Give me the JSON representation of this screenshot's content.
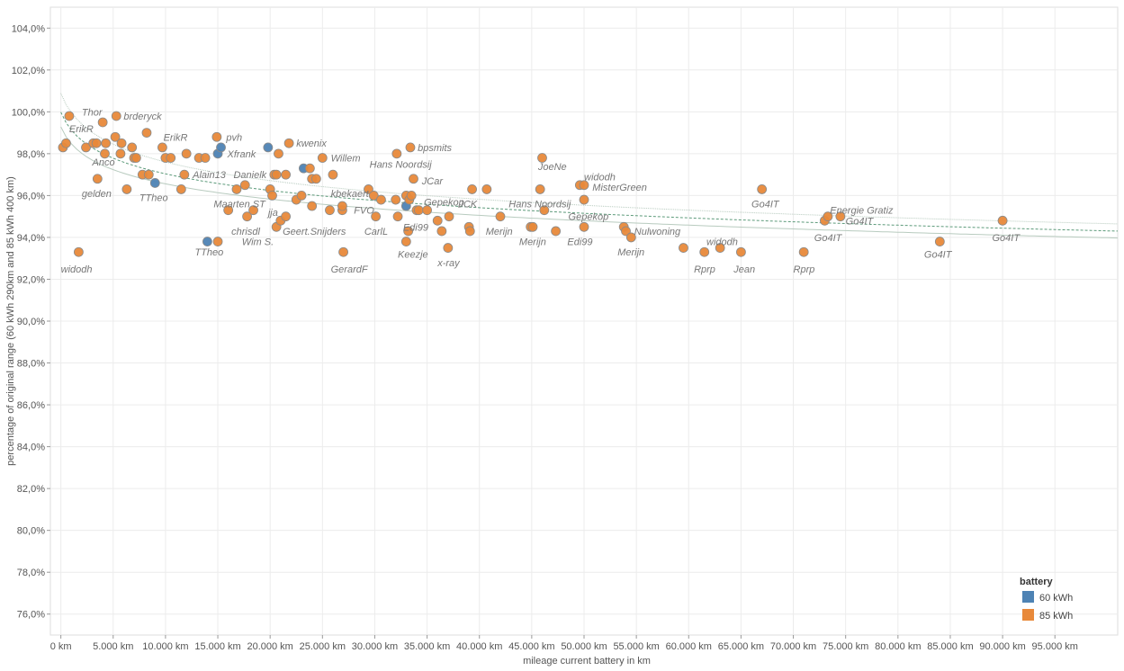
{
  "chart_data": {
    "type": "scatter",
    "xlabel": "mileage current battery in km",
    "ylabel": "percentage of original range (60 kWh 290km and 85 kWh 400 km)",
    "xlim": [
      -1000,
      101000
    ],
    "ylim": [
      75,
      105
    ],
    "x_ticks": [
      0,
      5000,
      10000,
      15000,
      20000,
      25000,
      30000,
      35000,
      40000,
      45000,
      50000,
      55000,
      60000,
      65000,
      70000,
      75000,
      80000,
      85000,
      90000,
      95000
    ],
    "x_tick_labels": [
      "0 km",
      "5.000 km",
      "10.000 km",
      "15.000 km",
      "20.000 km",
      "25.000 km",
      "30.000 km",
      "35.000 km",
      "40.000 km",
      "45.000 km",
      "50.000 km",
      "55.000 km",
      "60.000 km",
      "65.000 km",
      "70.000 km",
      "75.000 km",
      "80.000 km",
      "85.000 km",
      "90.000 km",
      "95.000 km"
    ],
    "y_ticks": [
      76,
      78,
      80,
      82,
      84,
      86,
      88,
      90,
      92,
      94,
      96,
      98,
      100,
      102,
      104
    ],
    "y_tick_labels": [
      "76,0%",
      "78,0%",
      "80,0%",
      "82,0%",
      "84,0%",
      "86,0%",
      "88,0%",
      "90,0%",
      "92,0%",
      "94,0%",
      "96,0%",
      "98,0%",
      "100,0%",
      "102,0%",
      "104,0%"
    ],
    "grid": true,
    "legend": {
      "title": "battery",
      "placement": "bottom-right",
      "entries": [
        {
          "name": "60 kWh",
          "color": "#4e83b4"
        },
        {
          "name": "85 kWh",
          "color": "#e8893a"
        }
      ]
    },
    "trend_lines": true,
    "series": [
      {
        "name": "60 kWh",
        "color": "#4e83b4",
        "points": [
          {
            "x": 9000,
            "y": 96.6
          },
          {
            "x": 14000,
            "y": 93.8
          },
          {
            "x": 15000,
            "y": 98.0
          },
          {
            "x": 15300,
            "y": 98.3
          },
          {
            "x": 19800,
            "y": 98.3
          },
          {
            "x": 23200,
            "y": 97.3
          },
          {
            "x": 33000,
            "y": 95.5
          }
        ]
      },
      {
        "name": "85 kWh",
        "color": "#e8893a",
        "points": [
          {
            "x": 200,
            "y": 98.3
          },
          {
            "x": 500,
            "y": 98.5
          },
          {
            "x": 800,
            "y": 99.8
          },
          {
            "x": 1700,
            "y": 93.3
          },
          {
            "x": 2400,
            "y": 98.3
          },
          {
            "x": 3100,
            "y": 98.5
          },
          {
            "x": 3400,
            "y": 98.5
          },
          {
            "x": 3500,
            "y": 96.8
          },
          {
            "x": 4000,
            "y": 99.5
          },
          {
            "x": 4200,
            "y": 98.0
          },
          {
            "x": 4300,
            "y": 98.5
          },
          {
            "x": 5200,
            "y": 98.8
          },
          {
            "x": 5300,
            "y": 99.8
          },
          {
            "x": 5700,
            "y": 98.0
          },
          {
            "x": 5800,
            "y": 98.5
          },
          {
            "x": 6300,
            "y": 96.3
          },
          {
            "x": 6800,
            "y": 98.3
          },
          {
            "x": 7000,
            "y": 97.8
          },
          {
            "x": 7200,
            "y": 97.8
          },
          {
            "x": 7800,
            "y": 97.0
          },
          {
            "x": 8200,
            "y": 99.0
          },
          {
            "x": 8400,
            "y": 97.0
          },
          {
            "x": 9700,
            "y": 98.3
          },
          {
            "x": 10000,
            "y": 97.8
          },
          {
            "x": 10500,
            "y": 97.8
          },
          {
            "x": 11500,
            "y": 96.3
          },
          {
            "x": 11800,
            "y": 97.0
          },
          {
            "x": 12000,
            "y": 98.0
          },
          {
            "x": 13200,
            "y": 97.8
          },
          {
            "x": 13800,
            "y": 97.8
          },
          {
            "x": 14900,
            "y": 98.8
          },
          {
            "x": 15000,
            "y": 93.8
          },
          {
            "x": 16000,
            "y": 95.3
          },
          {
            "x": 16800,
            "y": 96.3
          },
          {
            "x": 17600,
            "y": 96.5
          },
          {
            "x": 17800,
            "y": 95.0
          },
          {
            "x": 18400,
            "y": 95.3
          },
          {
            "x": 20000,
            "y": 96.3
          },
          {
            "x": 20200,
            "y": 96.0
          },
          {
            "x": 20400,
            "y": 97.0
          },
          {
            "x": 20600,
            "y": 97.0
          },
          {
            "x": 20600,
            "y": 94.5
          },
          {
            "x": 20800,
            "y": 98.0
          },
          {
            "x": 21000,
            "y": 94.8
          },
          {
            "x": 21500,
            "y": 95.0
          },
          {
            "x": 21500,
            "y": 97.0
          },
          {
            "x": 21800,
            "y": 98.5
          },
          {
            "x": 22500,
            "y": 95.8
          },
          {
            "x": 23000,
            "y": 96.0
          },
          {
            "x": 23800,
            "y": 97.3
          },
          {
            "x": 24000,
            "y": 96.8
          },
          {
            "x": 24000,
            "y": 95.5
          },
          {
            "x": 24400,
            "y": 96.8
          },
          {
            "x": 25000,
            "y": 97.8
          },
          {
            "x": 25700,
            "y": 95.3
          },
          {
            "x": 26000,
            "y": 97.0
          },
          {
            "x": 26900,
            "y": 95.3
          },
          {
            "x": 26900,
            "y": 95.5
          },
          {
            "x": 27000,
            "y": 93.3
          },
          {
            "x": 29400,
            "y": 96.3
          },
          {
            "x": 29900,
            "y": 96.0
          },
          {
            "x": 30100,
            "y": 95.0
          },
          {
            "x": 30600,
            "y": 95.8
          },
          {
            "x": 32000,
            "y": 95.8
          },
          {
            "x": 32100,
            "y": 98.0
          },
          {
            "x": 32200,
            "y": 95.0
          },
          {
            "x": 33000,
            "y": 96.0
          },
          {
            "x": 33000,
            "y": 93.8
          },
          {
            "x": 33200,
            "y": 94.3
          },
          {
            "x": 33300,
            "y": 95.8
          },
          {
            "x": 33400,
            "y": 98.3
          },
          {
            "x": 33500,
            "y": 96.0
          },
          {
            "x": 33700,
            "y": 96.8
          },
          {
            "x": 34000,
            "y": 95.3
          },
          {
            "x": 34200,
            "y": 95.3
          },
          {
            "x": 35000,
            "y": 95.3
          },
          {
            "x": 36000,
            "y": 94.8
          },
          {
            "x": 36400,
            "y": 94.3
          },
          {
            "x": 37000,
            "y": 93.5
          },
          {
            "x": 37100,
            "y": 95.0
          },
          {
            "x": 39000,
            "y": 94.5
          },
          {
            "x": 39100,
            "y": 94.3
          },
          {
            "x": 39300,
            "y": 96.3
          },
          {
            "x": 40700,
            "y": 96.3
          },
          {
            "x": 42000,
            "y": 95.0
          },
          {
            "x": 44900,
            "y": 94.5
          },
          {
            "x": 45100,
            "y": 94.5
          },
          {
            "x": 45800,
            "y": 96.3
          },
          {
            "x": 46000,
            "y": 97.8
          },
          {
            "x": 46200,
            "y": 95.3
          },
          {
            "x": 47300,
            "y": 94.3
          },
          {
            "x": 49600,
            "y": 96.5
          },
          {
            "x": 50000,
            "y": 96.5
          },
          {
            "x": 50000,
            "y": 95.8
          },
          {
            "x": 50000,
            "y": 94.5
          },
          {
            "x": 53800,
            "y": 94.5
          },
          {
            "x": 54000,
            "y": 94.3
          },
          {
            "x": 54500,
            "y": 94.0
          },
          {
            "x": 59500,
            "y": 93.5
          },
          {
            "x": 61500,
            "y": 93.3
          },
          {
            "x": 63000,
            "y": 93.5
          },
          {
            "x": 65000,
            "y": 93.3
          },
          {
            "x": 67000,
            "y": 96.3
          },
          {
            "x": 71000,
            "y": 93.3
          },
          {
            "x": 73000,
            "y": 94.8
          },
          {
            "x": 73300,
            "y": 95.0
          },
          {
            "x": 74500,
            "y": 95.0
          },
          {
            "x": 84000,
            "y": 93.8
          },
          {
            "x": 90000,
            "y": 94.8
          }
        ]
      }
    ],
    "labels": [
      {
        "text": "Thor",
        "x": 2000,
        "y": 100.0
      },
      {
        "text": "brderyck",
        "x": 6000,
        "y": 99.8
      },
      {
        "text": "ErikR",
        "x": 800,
        "y": 99.2
      },
      {
        "text": "ErikR",
        "x": 9800,
        "y": 98.8
      },
      {
        "text": "pvh",
        "x": 15800,
        "y": 98.8
      },
      {
        "text": "kwenix",
        "x": 22500,
        "y": 98.5
      },
      {
        "text": "bpsmits",
        "x": 34100,
        "y": 98.3
      },
      {
        "text": "Xfrank",
        "x": 15900,
        "y": 98.0
      },
      {
        "text": "Willem",
        "x": 25800,
        "y": 97.8
      },
      {
        "text": "JoeNe",
        "x": 45600,
        "y": 97.4
      },
      {
        "text": "Anco",
        "x": 3000,
        "y": 97.6
      },
      {
        "text": "Hans Noordsij",
        "x": 29500,
        "y": 97.5
      },
      {
        "text": "Alain13",
        "x": 12600,
        "y": 97.0
      },
      {
        "text": "Danielk",
        "x": 16500,
        "y": 97.0
      },
      {
        "text": "widodh",
        "x": 50000,
        "y": 96.9
      },
      {
        "text": "JCar",
        "x": 34500,
        "y": 96.7
      },
      {
        "text": "MisterGreen",
        "x": 50800,
        "y": 96.4
      },
      {
        "text": "gelden",
        "x": 2000,
        "y": 96.1
      },
      {
        "text": "kbekaert",
        "x": 25800,
        "y": 96.1
      },
      {
        "text": "TTheo",
        "x": 7500,
        "y": 95.9
      },
      {
        "text": "Maarten ST",
        "x": 14600,
        "y": 95.6
      },
      {
        "text": "Gepekop",
        "x": 34700,
        "y": 95.7
      },
      {
        "text": "JCK",
        "x": 38000,
        "y": 95.6
      },
      {
        "text": "Hans Noordsij",
        "x": 42800,
        "y": 95.6
      },
      {
        "text": "Go4IT",
        "x": 66000,
        "y": 95.6
      },
      {
        "text": "FVO",
        "x": 28000,
        "y": 95.3
      },
      {
        "text": "jja",
        "x": 19800,
        "y": 95.2
      },
      {
        "text": "Energie Gratiz",
        "x": 73500,
        "y": 95.3
      },
      {
        "text": "Gepekop",
        "x": 48500,
        "y": 95.0
      },
      {
        "text": "Go4IT",
        "x": 75000,
        "y": 94.8
      },
      {
        "text": "Edi99",
        "x": 32700,
        "y": 94.5
      },
      {
        "text": "chrisdl",
        "x": 16300,
        "y": 94.3
      },
      {
        "text": "Geert.Snijders",
        "x": 21200,
        "y": 94.3
      },
      {
        "text": "CarlL",
        "x": 29000,
        "y": 94.3
      },
      {
        "text": "Merijn",
        "x": 40600,
        "y": 94.3
      },
      {
        "text": "Nulwoning",
        "x": 54800,
        "y": 94.3
      },
      {
        "text": "Wim S.",
        "x": 17300,
        "y": 93.8
      },
      {
        "text": "Merijn",
        "x": 43800,
        "y": 93.8
      },
      {
        "text": "Edi99",
        "x": 48400,
        "y": 93.8
      },
      {
        "text": "Go4IT",
        "x": 72000,
        "y": 94.0
      },
      {
        "text": "Go4IT",
        "x": 89000,
        "y": 94.0
      },
      {
        "text": "widodh",
        "x": 61700,
        "y": 93.8
      },
      {
        "text": "TTheo",
        "x": 12800,
        "y": 93.3
      },
      {
        "text": "Merijn",
        "x": 53200,
        "y": 93.3
      },
      {
        "text": "Keezje",
        "x": 32200,
        "y": 93.2
      },
      {
        "text": "Go4IT",
        "x": 82500,
        "y": 93.2
      },
      {
        "text": "x-ray",
        "x": 36000,
        "y": 92.8
      },
      {
        "text": "widodh",
        "x": 0,
        "y": 92.5
      },
      {
        "text": "GerardF",
        "x": 25800,
        "y": 92.5
      },
      {
        "text": "Rprp",
        "x": 60500,
        "y": 92.5
      },
      {
        "text": "Jean",
        "x": 64300,
        "y": 92.5
      },
      {
        "text": "Rprp",
        "x": 70000,
        "y": 92.5
      }
    ]
  }
}
